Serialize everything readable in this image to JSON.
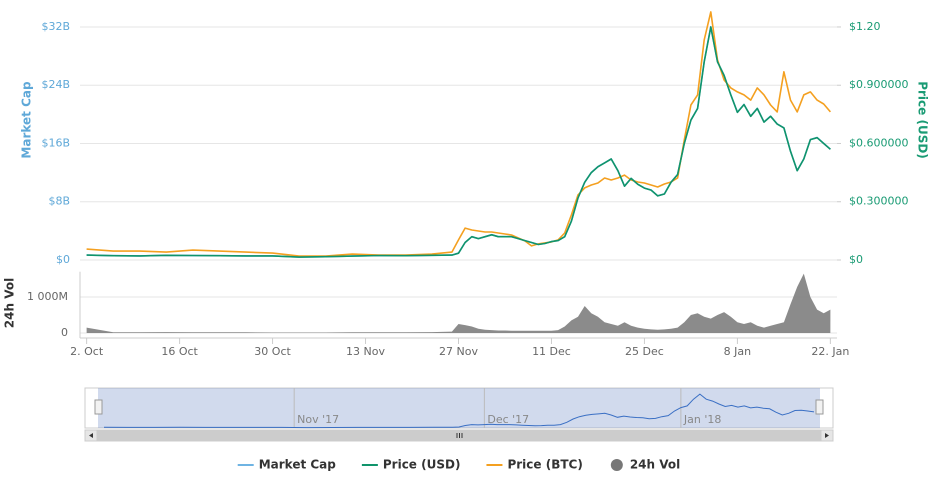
{
  "chart_data": {
    "type": "line",
    "ylabel": "Market Cap",
    "y2label": "Price (USD)",
    "xlim": [
      "2017-10-01",
      "2018-01-23"
    ],
    "ylim": [
      0,
      34
    ],
    "y2lim": [
      0,
      1.275
    ],
    "y3lim": [
      0,
      0.0001
    ],
    "grid": true,
    "yticks": [
      {
        "value": 0,
        "label": "$0"
      },
      {
        "value": 8,
        "label": "$8B"
      },
      {
        "value": 16,
        "label": "$16B"
      },
      {
        "value": 24,
        "label": "$24B"
      },
      {
        "value": 32,
        "label": "$32B"
      }
    ],
    "y2ticks": [
      {
        "value": 0,
        "label": "$0"
      },
      {
        "value": 0.3,
        "label": "$0.300000"
      },
      {
        "value": 0.6,
        "label": "$0.600000"
      },
      {
        "value": 0.9,
        "label": "$0.900000"
      },
      {
        "value": 1.2,
        "label": "$1.20"
      }
    ],
    "xticks": [
      {
        "value": "2017-10-02",
        "label": "2. Oct"
      },
      {
        "value": "2017-10-16",
        "label": "16 Oct"
      },
      {
        "value": "2017-10-30",
        "label": "30 Oct"
      },
      {
        "value": "2017-11-13",
        "label": "13 Nov"
      },
      {
        "value": "2017-11-27",
        "label": "27 Nov"
      },
      {
        "value": "2017-12-11",
        "label": "11 Dec"
      },
      {
        "value": "2017-12-25",
        "label": "25 Dec"
      },
      {
        "value": "2018-01-08",
        "label": "8 Jan"
      },
      {
        "value": "2018-01-22",
        "label": "22. Jan"
      }
    ],
    "x": [
      "2017-10-02",
      "2017-10-06",
      "2017-10-10",
      "2017-10-14",
      "2017-10-18",
      "2017-10-22",
      "2017-10-26",
      "2017-10-30",
      "2017-11-03",
      "2017-11-07",
      "2017-11-11",
      "2017-11-15",
      "2017-11-19",
      "2017-11-23",
      "2017-11-26",
      "2017-11-27",
      "2017-11-28",
      "2017-11-29",
      "2017-11-30",
      "2017-12-01",
      "2017-12-02",
      "2017-12-03",
      "2017-12-04",
      "2017-12-05",
      "2017-12-06",
      "2017-12-07",
      "2017-12-08",
      "2017-12-09",
      "2017-12-10",
      "2017-12-11",
      "2017-12-12",
      "2017-12-13",
      "2017-12-14",
      "2017-12-15",
      "2017-12-16",
      "2017-12-17",
      "2017-12-18",
      "2017-12-19",
      "2017-12-20",
      "2017-12-21",
      "2017-12-22",
      "2017-12-23",
      "2017-12-24",
      "2017-12-25",
      "2017-12-26",
      "2017-12-27",
      "2017-12-28",
      "2017-12-29",
      "2017-12-30",
      "2017-12-31",
      "2018-01-01",
      "2018-01-02",
      "2018-01-03",
      "2018-01-04",
      "2018-01-05",
      "2018-01-06",
      "2018-01-07",
      "2018-01-08",
      "2018-01-09",
      "2018-01-10",
      "2018-01-11",
      "2018-01-12",
      "2018-01-13",
      "2018-01-14",
      "2018-01-15",
      "2018-01-16",
      "2018-01-17",
      "2018-01-18",
      "2018-01-19",
      "2018-01-20",
      "2018-01-21",
      "2018-01-22"
    ],
    "series": [
      {
        "name": "Market Cap",
        "color": "#6fb4e3",
        "axis": "y",
        "values": [
          0.67,
          0.59,
          0.56,
          0.64,
          0.61,
          0.59,
          0.56,
          0.56,
          0.4,
          0.45,
          0.53,
          0.61,
          0.59,
          0.64,
          0.67,
          0.93,
          2.4,
          3.2,
          2.94,
          3.2,
          3.47,
          3.2,
          3.2,
          3.2,
          2.94,
          2.67,
          2.4,
          2.14,
          2.27,
          2.54,
          2.67,
          3.2,
          5.34,
          8.54,
          10.68,
          12.02,
          12.82,
          13.35,
          13.88,
          12.28,
          10.15,
          11.21,
          10.41,
          9.88,
          9.61,
          8.81,
          9.08,
          10.68,
          11.75,
          16.02,
          19.22,
          20.83,
          27.23,
          32.04,
          27.23,
          25.37,
          22.7,
          20.29,
          21.36,
          19.76,
          20.83,
          18.96,
          19.76,
          18.69,
          18.16,
          14.95,
          12.28,
          13.88,
          16.55,
          16.82,
          16.02,
          15.22
        ]
      },
      {
        "name": "Price (USD)",
        "color": "#10946b",
        "axis": "y2",
        "values": [
          0.025,
          0.022,
          0.021,
          0.024,
          0.023,
          0.022,
          0.021,
          0.021,
          0.015,
          0.017,
          0.02,
          0.023,
          0.022,
          0.024,
          0.025,
          0.035,
          0.09,
          0.12,
          0.11,
          0.12,
          0.13,
          0.12,
          0.12,
          0.12,
          0.11,
          0.1,
          0.09,
          0.08,
          0.085,
          0.095,
          0.1,
          0.12,
          0.2,
          0.32,
          0.4,
          0.45,
          0.48,
          0.5,
          0.52,
          0.46,
          0.38,
          0.42,
          0.39,
          0.37,
          0.36,
          0.33,
          0.34,
          0.4,
          0.44,
          0.6,
          0.72,
          0.78,
          1.02,
          1.2,
          1.02,
          0.95,
          0.85,
          0.76,
          0.8,
          0.74,
          0.78,
          0.71,
          0.74,
          0.7,
          0.68,
          0.56,
          0.46,
          0.52,
          0.62,
          0.63,
          0.6,
          0.57
        ]
      },
      {
        "name": "Price (BTC)",
        "color": "#f4a020",
        "axis": "y3",
        "values": [
          4.4e-06,
          3.6e-06,
          3.6e-06,
          3.2e-06,
          4e-06,
          3.6e-06,
          3.2e-06,
          2.8e-06,
          1.6e-06,
          1.6e-06,
          2.4e-06,
          2e-06,
          2e-06,
          2.4e-06,
          3.2e-06,
          8.1e-06,
          1.29e-05,
          1.21e-05,
          1.17e-05,
          1.13e-05,
          1.13e-05,
          1.09e-05,
          1.05e-05,
          1.01e-05,
          8.9e-06,
          7.7e-06,
          5.7e-06,
          6.5e-06,
          6.9e-06,
          7.3e-06,
          8.1e-06,
          1.09e-05,
          1.82e-05,
          2.63e-05,
          2.91e-05,
          3.03e-05,
          3.11e-05,
          3.31e-05,
          3.23e-05,
          3.31e-05,
          3.43e-05,
          3.23e-05,
          3.15e-05,
          3.11e-05,
          3.03e-05,
          2.95e-05,
          3.07e-05,
          3.15e-05,
          3.31e-05,
          4.85e-05,
          6.26e-05,
          6.67e-05,
          8.89e-05,
          0.0001002,
          8.08e-05,
          7.27e-05,
          6.95e-05,
          6.79e-05,
          6.67e-05,
          6.46e-05,
          6.95e-05,
          6.67e-05,
          6.26e-05,
          5.98e-05,
          7.6e-05,
          6.46e-05,
          5.98e-05,
          6.67e-05,
          6.79e-05,
          6.46e-05,
          6.3e-05,
          5.98e-05
        ]
      }
    ],
    "volume": {
      "name": "24h Vol",
      "ylabel": "24h Vol",
      "color": "#777777",
      "ylim": [
        0,
        1700
      ],
      "yticks": [
        0,
        {
          "value": 1000,
          "label": "1 000M"
        }
      ],
      "values": [
        150,
        20,
        20,
        25,
        20,
        20,
        20,
        15,
        15,
        15,
        20,
        20,
        20,
        25,
        40,
        250,
        220,
        180,
        120,
        90,
        80,
        70,
        70,
        60,
        60,
        60,
        60,
        60,
        60,
        60,
        80,
        180,
        350,
        450,
        750,
        550,
        450,
        300,
        250,
        200,
        300,
        200,
        150,
        120,
        100,
        90,
        100,
        120,
        150,
        300,
        500,
        550,
        450,
        400,
        500,
        580,
        450,
        300,
        250,
        300,
        200,
        150,
        200,
        250,
        300,
        800,
        1280,
        1650,
        1000,
        650,
        550,
        650
      ]
    },
    "navigator": {
      "xlim": [
        "2017-09-29",
        "2018-01-25"
      ],
      "labels": [
        {
          "value": "2017-11-01",
          "label": "Nov '17"
        },
        {
          "value": "2017-12-01",
          "label": "Dec '17"
        },
        {
          "value": "2018-01-01",
          "label": "Jan '18"
        }
      ]
    }
  }
}
